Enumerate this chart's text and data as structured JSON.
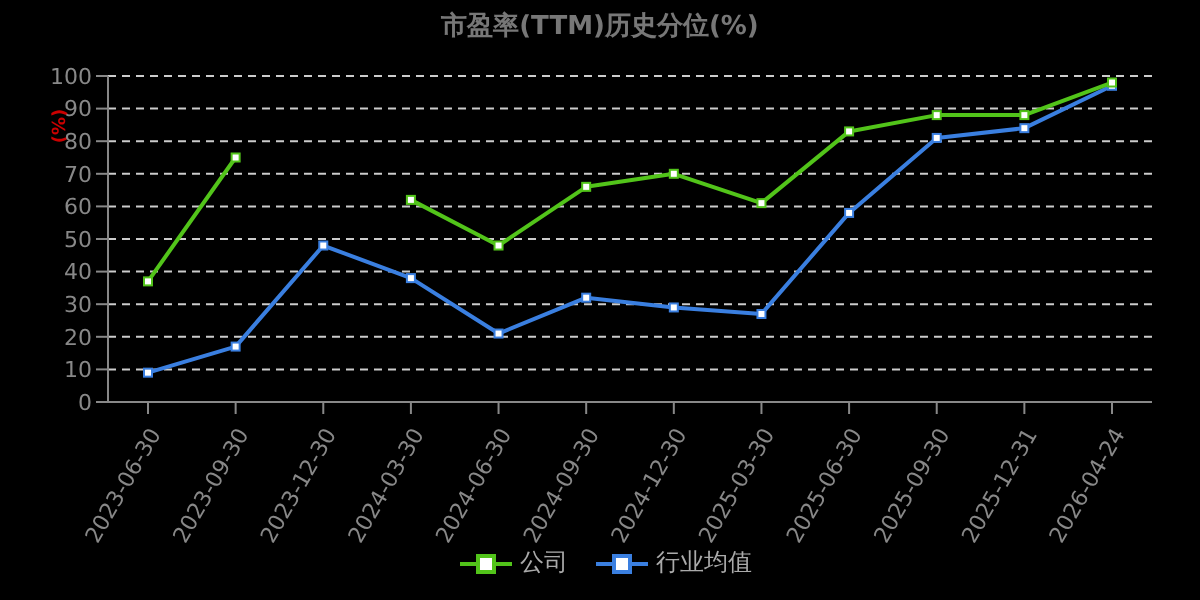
{
  "chart_data": {
    "type": "line",
    "title": "市盈率(TTM)历史分位(%)",
    "ylabel": "(%)",
    "categories": [
      "2023-06-30",
      "2023-09-30",
      "2023-12-30",
      "2024-03-30",
      "2024-06-30",
      "2024-09-30",
      "2024-12-30",
      "2025-03-30",
      "2025-06-30",
      "2025-09-30",
      "2025-12-31",
      "2026-04-24"
    ],
    "series": [
      {
        "name": "公司",
        "color": "#52c41a",
        "values": [
          37,
          75,
          null,
          62,
          48,
          66,
          70,
          61,
          83,
          88,
          88,
          98
        ]
      },
      {
        "name": "行业均值",
        "color": "#3a7fe0",
        "values": [
          9,
          17,
          48,
          38,
          21,
          32,
          29,
          27,
          58,
          81,
          84,
          97
        ]
      }
    ],
    "ylim": [
      0,
      100
    ],
    "yticks": [
      0,
      10,
      20,
      30,
      40,
      50,
      60,
      70,
      80,
      90,
      100
    ],
    "grid": "y",
    "legend": "bottom",
    "marker": "square"
  }
}
